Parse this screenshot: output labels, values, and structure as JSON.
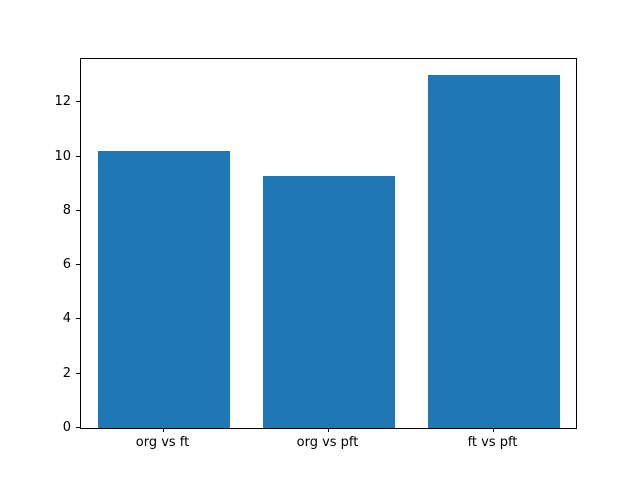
{
  "chart_data": {
    "type": "bar",
    "categories": [
      "org vs ft",
      "org vs pft",
      "ft vs pft"
    ],
    "values": [
      10.2,
      9.3,
      13.0
    ],
    "title": "",
    "xlabel": "",
    "ylabel": "",
    "ylim": [
      0,
      13.6
    ],
    "yticks": [
      0,
      2,
      4,
      6,
      8,
      10,
      12
    ],
    "bar_color": "#1f77b4",
    "background_color": "#ffffff",
    "grid": false,
    "legend": null
  }
}
